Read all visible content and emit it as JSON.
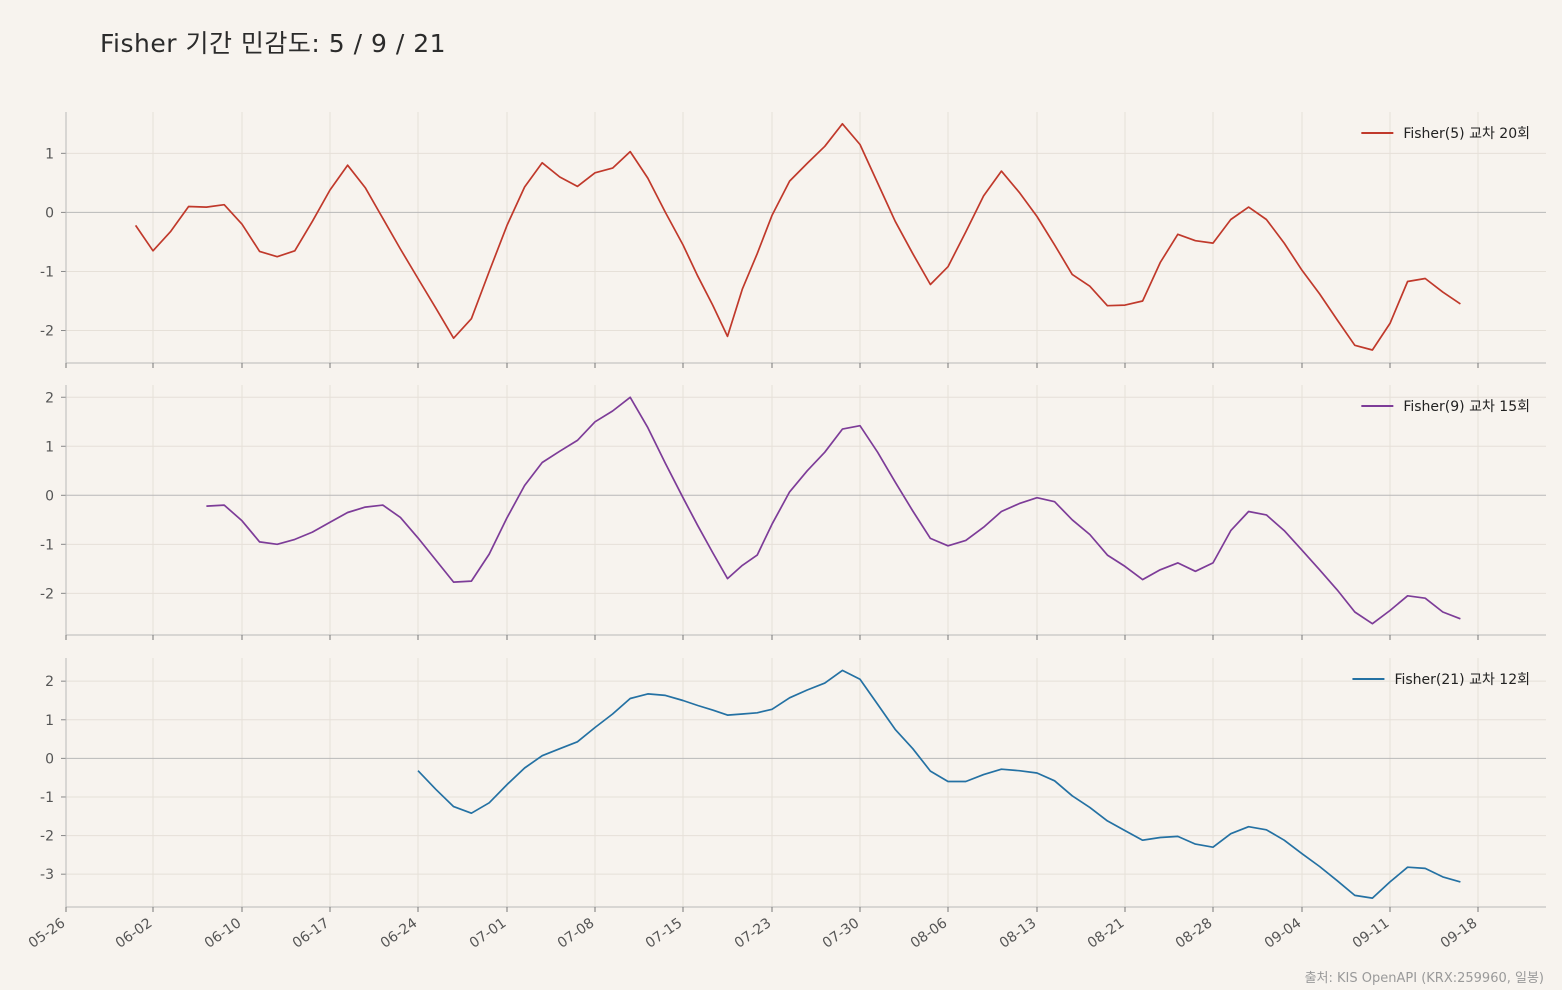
{
  "title": "Fisher 기간 민감도: 5 / 9 / 21",
  "source": "출처: KIS OpenAPI (KRX:259960, 일봉)",
  "colors": {
    "background": "#f7f3ee",
    "grid": "#e6e0d8",
    "axis": "#b8b8b8"
  },
  "chart_data": {
    "type": "line",
    "x_ticks": [
      "05-26",
      "06-02",
      "06-10",
      "06-17",
      "06-24",
      "07-01",
      "07-08",
      "07-15",
      "07-23",
      "07-30",
      "08-06",
      "08-13",
      "08-21",
      "08-28",
      "09-04",
      "09-11",
      "09-18"
    ],
    "x_dates": [
      "05-26",
      "05-27",
      "05-28",
      "05-29",
      "05-30",
      "06-02",
      "06-03",
      "06-04",
      "06-05",
      "06-09",
      "06-10",
      "06-11",
      "06-12",
      "06-13",
      "06-16",
      "06-17",
      "06-18",
      "06-19",
      "06-20",
      "06-23",
      "06-24",
      "06-25",
      "06-26",
      "06-27",
      "06-30",
      "07-01",
      "07-02",
      "07-03",
      "07-04",
      "07-07",
      "07-08",
      "07-09",
      "07-10",
      "07-11",
      "07-14",
      "07-15",
      "07-16",
      "07-17",
      "07-18",
      "07-21",
      "07-22",
      "07-23",
      "07-24",
      "07-25",
      "07-28",
      "07-29",
      "07-30",
      "07-31",
      "08-01",
      "08-04",
      "08-05",
      "08-06",
      "08-07",
      "08-08",
      "08-11",
      "08-12",
      "08-13",
      "08-14",
      "08-18",
      "08-19",
      "08-20",
      "08-21",
      "08-22",
      "08-25",
      "08-26",
      "08-27",
      "08-28",
      "08-29",
      "09-01",
      "09-02",
      "09-03",
      "09-04",
      "09-05",
      "09-08",
      "09-09",
      "09-10",
      "09-11",
      "09-12",
      "09-15",
      "09-16",
      "09-17",
      "09-18"
    ],
    "panels": [
      {
        "legend": "Fisher(5) 교차 20회",
        "color": "#c0392b",
        "ylim": [
          -2.55,
          1.7
        ],
        "yticks": [
          1,
          0,
          -1,
          -2
        ],
        "values": [
          null,
          null,
          null,
          null,
          -0.22,
          -0.65,
          -0.32,
          0.1,
          0.09,
          0.13,
          -0.2,
          -0.66,
          -0.75,
          -0.65,
          -0.15,
          0.38,
          0.8,
          0.42,
          -0.1,
          -0.62,
          -1.12,
          -1.62,
          -2.13,
          -1.8,
          -1.0,
          -0.22,
          0.43,
          0.84,
          0.6,
          0.44,
          0.67,
          0.75,
          1.03,
          0.58,
          0.0,
          -0.55,
          -1.08,
          -1.57,
          -2.1,
          -1.3,
          -0.7,
          -0.05,
          0.53,
          0.83,
          1.12,
          1.5,
          1.15,
          0.5,
          -0.15,
          -0.7,
          -1.22,
          -0.92,
          -0.33,
          0.28,
          0.7,
          0.34,
          -0.07,
          -0.55,
          -1.05,
          -1.25,
          -1.58,
          -1.57,
          -1.5,
          -0.85,
          -0.37,
          -0.48,
          -0.52,
          -0.12,
          0.09,
          -0.12,
          -0.52,
          -0.98,
          -1.38,
          -1.82,
          -2.25,
          -2.33,
          -1.88,
          -1.17,
          -1.12,
          -1.35,
          -1.55,
          null
        ]
      },
      {
        "legend": "Fisher(9) 교차 15회",
        "color": "#7d3c98",
        "ylim": [
          -2.85,
          2.25
        ],
        "yticks": [
          2,
          1,
          0,
          -1,
          -2
        ],
        "values": [
          null,
          null,
          null,
          null,
          null,
          null,
          null,
          null,
          -0.22,
          -0.2,
          -0.52,
          -0.95,
          -1.0,
          -0.9,
          -0.75,
          -0.55,
          -0.35,
          -0.24,
          -0.2,
          -0.45,
          -0.87,
          -1.32,
          -1.77,
          -1.75,
          -1.2,
          -0.46,
          0.2,
          0.67,
          0.9,
          1.12,
          1.5,
          1.72,
          2.0,
          1.38,
          0.65,
          -0.05,
          -0.62,
          -1.17,
          -1.7,
          -1.43,
          -1.22,
          -0.59,
          0.07,
          0.5,
          0.88,
          1.35,
          1.42,
          0.88,
          0.27,
          -0.32,
          -0.88,
          -1.03,
          -0.92,
          -0.65,
          -0.33,
          -0.17,
          -0.05,
          -0.13,
          -0.5,
          -0.8,
          -1.22,
          -1.45,
          -1.72,
          -1.52,
          -1.38,
          -1.55,
          -1.38,
          -0.72,
          -0.33,
          -0.4,
          -0.72,
          -1.12,
          -1.52,
          -1.93,
          -2.38,
          -2.62,
          -2.35,
          -2.05,
          -2.1,
          -2.38,
          -2.52,
          null
        ]
      },
      {
        "legend": "Fisher(21) 교차 12회",
        "color": "#2471a3",
        "ylim": [
          -3.85,
          2.6
        ],
        "yticks": [
          2,
          1,
          0,
          -1,
          -2,
          -3
        ],
        "values": [
          null,
          null,
          null,
          null,
          null,
          null,
          null,
          null,
          null,
          null,
          null,
          null,
          null,
          null,
          null,
          null,
          null,
          null,
          null,
          null,
          -0.32,
          -0.8,
          -1.25,
          -1.42,
          -1.15,
          -0.68,
          -0.25,
          0.07,
          0.25,
          0.43,
          0.8,
          1.15,
          1.55,
          1.67,
          1.63,
          1.5,
          1.37,
          1.25,
          1.12,
          1.15,
          1.18,
          1.27,
          1.57,
          1.77,
          1.95,
          2.28,
          2.05,
          1.4,
          0.75,
          0.25,
          -0.33,
          -0.6,
          -0.6,
          -0.42,
          -0.28,
          -0.32,
          -0.38,
          -0.58,
          -0.97,
          -1.27,
          -1.62,
          -1.87,
          -2.12,
          -2.05,
          -2.02,
          -2.22,
          -2.3,
          -1.95,
          -1.77,
          -1.85,
          -2.12,
          -2.47,
          -2.8,
          -3.17,
          -3.55,
          -3.62,
          -3.2,
          -2.82,
          -2.85,
          -3.07,
          -3.2,
          null
        ]
      }
    ]
  }
}
